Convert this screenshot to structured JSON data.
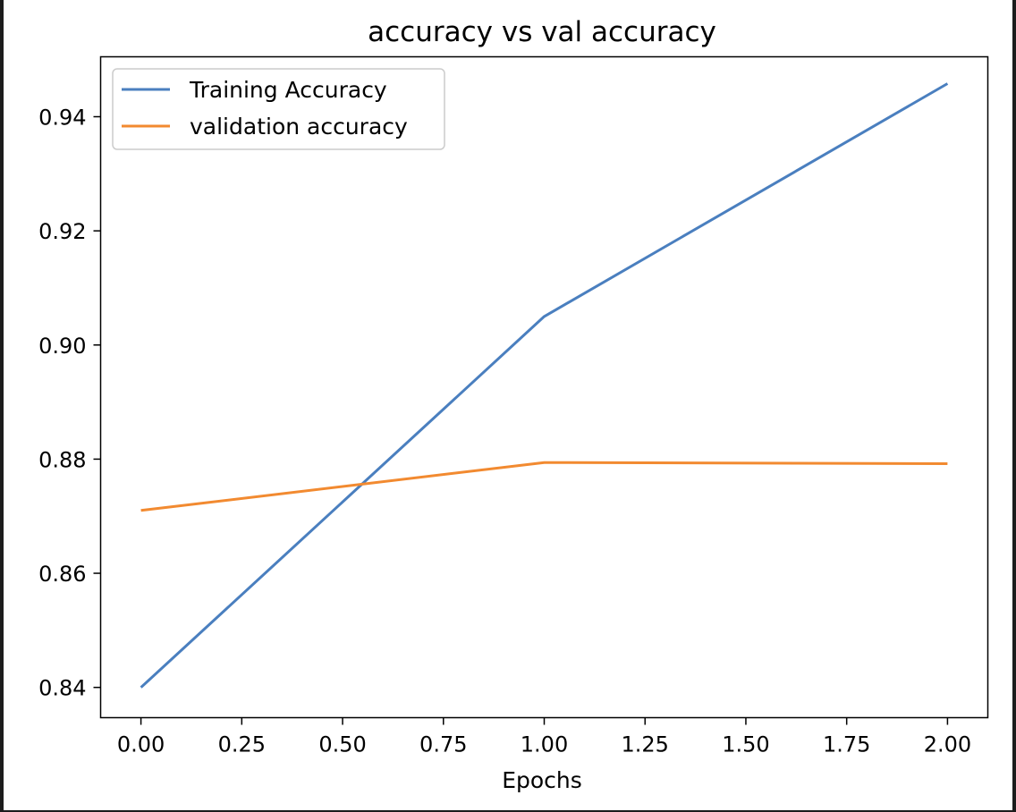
{
  "chart_data": {
    "type": "line",
    "title": "accuracy vs val accuracy",
    "xlabel": "Epochs",
    "ylabel": "",
    "x": [
      0,
      1,
      2
    ],
    "series": [
      {
        "name": "Training Accuracy",
        "values": [
          0.84,
          0.905,
          0.9458
        ],
        "color": "#4a7fbf"
      },
      {
        "name": "validation accuracy",
        "values": [
          0.871,
          0.8794,
          0.8792
        ],
        "color": "#f28a30"
      }
    ],
    "xlim": [
      -0.1,
      2.1
    ],
    "ylim": [
      0.8347,
      0.9505
    ],
    "xticks": [
      "0.00",
      "0.25",
      "0.50",
      "0.75",
      "1.00",
      "1.25",
      "1.50",
      "1.75",
      "2.00"
    ],
    "yticks": [
      "0.84",
      "0.86",
      "0.88",
      "0.90",
      "0.92",
      "0.94"
    ],
    "grid": false,
    "legend_position": "upper left"
  }
}
